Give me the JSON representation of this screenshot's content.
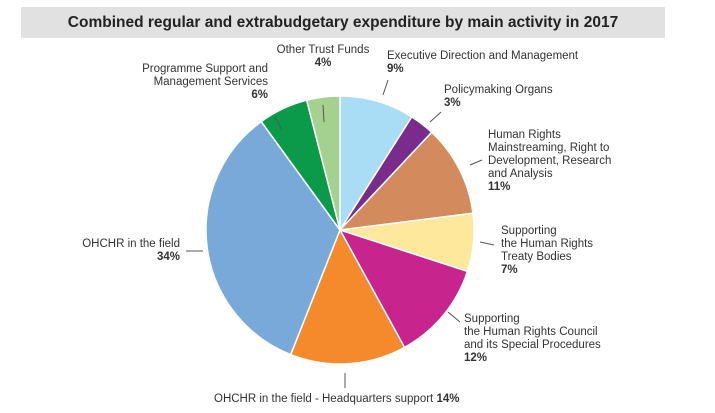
{
  "chart_data": {
    "type": "pie",
    "title": "Combined regular and extrabudgetary expenditure by main activity in 2017",
    "unit": "%",
    "start": "top, clockwise",
    "slices": [
      {
        "label": "Executive Direction and Management",
        "value": 9,
        "value_label": "9%",
        "color": "#a9ddf5"
      },
      {
        "label": "Policymaking Organs",
        "value": 3,
        "value_label": "3%",
        "color": "#7a2c8c"
      },
      {
        "label": "Human Rights Mainstreaming, Right to Development, Research and Analysis",
        "value": 11,
        "value_label": "11%",
        "color": "#d38a5d"
      },
      {
        "label": "Supporting the Human Rights Treaty Bodies",
        "value": 7,
        "value_label": "7%",
        "color": "#fde89b"
      },
      {
        "label": "Supporting the Human Rights Council and its Special Procedures",
        "value": 12,
        "value_label": "12%",
        "color": "#c7248e"
      },
      {
        "label": "OHCHR in the field - Headquarters support",
        "value": 14,
        "value_label": "14%",
        "color": "#f58a2c"
      },
      {
        "label": "OHCHR in the field",
        "value": 34,
        "value_label": "34%",
        "color": "#78a9d9"
      },
      {
        "label": "Programme Support and Management Services",
        "value": 6,
        "value_label": "6%",
        "color": "#0a9a4a"
      },
      {
        "label": "Other Trust Funds",
        "value": 4,
        "value_label": "4%",
        "color": "#a4d28e"
      }
    ]
  },
  "labels": [
    {
      "lines": [
        "Executive Direction and Management"
      ],
      "pct": "9%"
    },
    {
      "lines": [
        "Policymaking Organs"
      ],
      "pct": "3%"
    },
    {
      "lines": [
        "Human Rights",
        "Mainstreaming, Right to",
        "Development, Research",
        "and Analysis"
      ],
      "pct": "11%"
    },
    {
      "lines": [
        "Supporting",
        "the Human Rights",
        "Treaty Bodies"
      ],
      "pct": "7%"
    },
    {
      "lines": [
        "Supporting",
        "the Human Rights Council",
        "and its Special Procedures"
      ],
      "pct": "12%"
    },
    {
      "lines": [
        "OHCHR in the field - Headquarters support"
      ],
      "pct": "14%"
    },
    {
      "lines": [
        "OHCHR in the field"
      ],
      "pct": "34%"
    },
    {
      "lines": [
        "Programme Support and",
        "Management Services"
      ],
      "pct": "6%"
    },
    {
      "lines": [
        "Other Trust Funds"
      ],
      "pct": "4%"
    }
  ]
}
